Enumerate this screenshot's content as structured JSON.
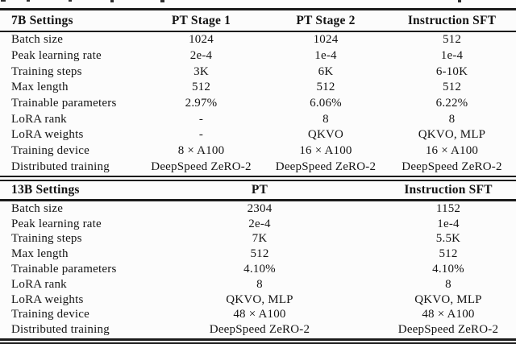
{
  "page": {
    "background": "#fcfcfc",
    "text_color": "#141414",
    "rule_color": "#1b1b1b"
  },
  "tables": [
    {
      "name": "7b-settings-table",
      "header": [
        "7B Settings",
        "PT Stage 1",
        "PT Stage 2",
        "Instruction SFT"
      ],
      "rows": [
        [
          "Batch size",
          "1024",
          "1024",
          "512"
        ],
        [
          "Peak learning rate",
          "2e-4",
          "1e-4",
          "1e-4"
        ],
        [
          "Training steps",
          "3K",
          "6K",
          "6-10K"
        ],
        [
          "Max length",
          "512",
          "512",
          "512"
        ],
        [
          "Trainable parameters",
          "2.97%",
          "6.06%",
          "6.22%"
        ],
        [
          "LoRA rank",
          "-",
          "8",
          "8"
        ],
        [
          "LoRA weights",
          "-",
          "QKVO",
          "QKVO, MLP"
        ],
        [
          "Training device",
          "8 × A100",
          "16 × A100",
          "16 × A100"
        ],
        [
          "Distributed training",
          "DeepSpeed ZeRO-2",
          "DeepSpeed ZeRO-2",
          "DeepSpeed ZeRO-2"
        ]
      ]
    },
    {
      "name": "13b-settings-table",
      "header": [
        "13B Settings",
        "PT",
        "Instruction SFT"
      ],
      "rows": [
        [
          "Batch size",
          "2304",
          "1152"
        ],
        [
          "Peak learning rate",
          "2e-4",
          "1e-4"
        ],
        [
          "Training steps",
          "7K",
          "5.5K"
        ],
        [
          "Max length",
          "512",
          "512"
        ],
        [
          "Trainable parameters",
          "4.10%",
          "4.10%"
        ],
        [
          "LoRA rank",
          "8",
          "8"
        ],
        [
          "LoRA weights",
          "QKVO, MLP",
          "QKVO, MLP"
        ],
        [
          "Training device",
          "48 × A100",
          "48 × A100"
        ],
        [
          "Distributed training",
          "DeepSpeed ZeRO-2",
          "DeepSpeed ZeRO-2"
        ]
      ]
    }
  ]
}
